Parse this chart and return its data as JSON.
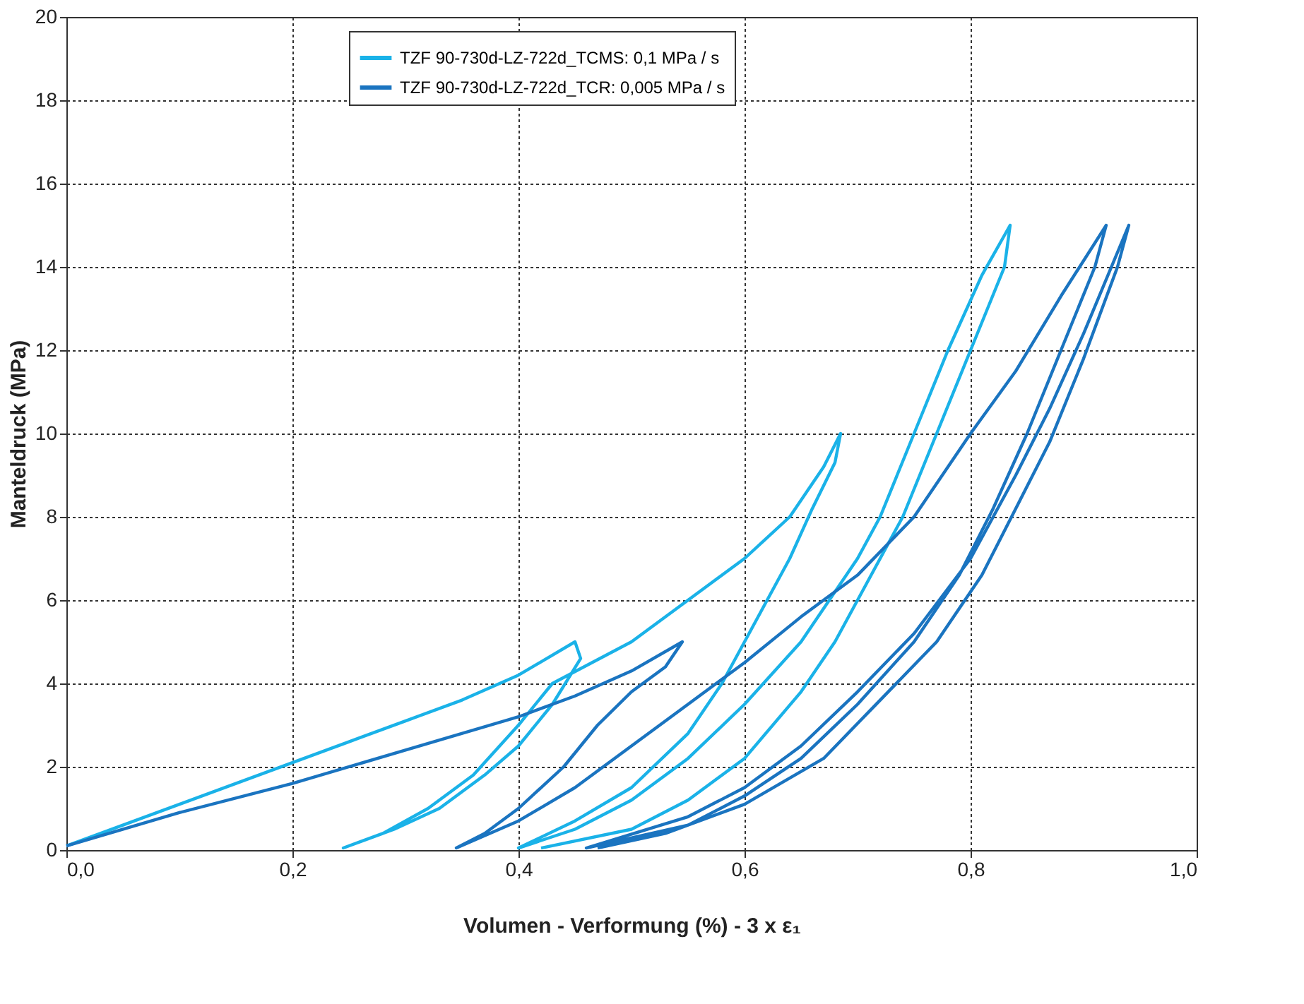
{
  "chart_data": {
    "type": "line",
    "xlabel": "Volumen - Verformung (%)  - 3 x ε₁",
    "ylabel": "Manteldruck (MPa)",
    "xlim": [
      0,
      1.0
    ],
    "ylim": [
      0,
      20
    ],
    "xticks": [
      {
        "value": 0,
        "label": "0,0"
      },
      {
        "value": 0.2,
        "label": "0,2"
      },
      {
        "value": 0.4,
        "label": "0,4"
      },
      {
        "value": 0.6,
        "label": "0,6"
      },
      {
        "value": 0.8,
        "label": "0,8"
      },
      {
        "value": 1.0,
        "label": "1,0"
      }
    ],
    "yticks": [
      0,
      2,
      4,
      6,
      8,
      10,
      12,
      14,
      16,
      18,
      20
    ],
    "grid": true,
    "legend": "top",
    "marker": "none",
    "line_style": "solid",
    "series": [
      {
        "name": "TZF 90-730d-LZ-722d_TCMS:  0,1 MPa / s",
        "color": "#1ab2e8",
        "x": [
          0,
          0.05,
          0.1,
          0.15,
          0.2,
          0.25,
          0.3,
          0.35,
          0.4,
          0.45,
          0.455,
          0.43,
          0.4,
          0.37,
          0.33,
          0.29,
          0.245,
          0.28,
          0.32,
          0.36,
          0.4,
          0.43,
          0.5,
          0.55,
          0.6,
          0.64,
          0.67,
          0.685,
          0.68,
          0.66,
          0.64,
          0.61,
          0.58,
          0.55,
          0.5,
          0.45,
          0.4,
          0.45,
          0.5,
          0.55,
          0.6,
          0.65,
          0.7,
          0.72,
          0.75,
          0.78,
          0.81,
          0.835,
          0.83,
          0.8,
          0.77,
          0.74,
          0.71,
          0.68,
          0.65,
          0.6,
          0.55,
          0.5,
          0.42
        ],
        "values": [
          0.1,
          0.6,
          1.1,
          1.6,
          2.1,
          2.6,
          3.1,
          3.6,
          4.2,
          5.0,
          4.6,
          3.5,
          2.5,
          1.8,
          1.0,
          0.5,
          0.05,
          0.4,
          1.0,
          1.8,
          3.0,
          4.0,
          5.0,
          6.0,
          7.0,
          8.0,
          9.2,
          10.0,
          9.3,
          8.2,
          7.0,
          5.5,
          4.0,
          2.8,
          1.5,
          0.7,
          0.05,
          0.5,
          1.2,
          2.2,
          3.5,
          5.0,
          7.0,
          8.0,
          10.0,
          12.0,
          13.8,
          15.0,
          14.0,
          12.0,
          10.0,
          8.0,
          6.5,
          5.0,
          3.8,
          2.2,
          1.2,
          0.5,
          0.05
        ]
      },
      {
        "name": "TZF 90-730d-LZ-722d_TCR: 0,005 MPa / s",
        "color": "#1a74c0",
        "x": [
          0,
          0.1,
          0.2,
          0.3,
          0.4,
          0.45,
          0.5,
          0.545,
          0.53,
          0.5,
          0.47,
          0.44,
          0.4,
          0.37,
          0.345,
          0.4,
          0.45,
          0.5,
          0.55,
          0.6,
          0.65,
          0.7,
          0.75,
          0.8,
          0.84,
          0.88,
          0.92,
          0.91,
          0.88,
          0.85,
          0.82,
          0.79,
          0.75,
          0.7,
          0.65,
          0.6,
          0.55,
          0.46,
          0.55,
          0.6,
          0.65,
          0.7,
          0.75,
          0.8,
          0.84,
          0.87,
          0.9,
          0.94,
          0.93,
          0.9,
          0.87,
          0.84,
          0.81,
          0.77,
          0.72,
          0.67,
          0.6,
          0.53,
          0.47
        ],
        "values": [
          0.1,
          0.9,
          1.6,
          2.4,
          3.2,
          3.7,
          4.3,
          5.0,
          4.4,
          3.8,
          3.0,
          2.0,
          1.0,
          0.4,
          0.05,
          0.7,
          1.5,
          2.5,
          3.5,
          4.5,
          5.6,
          6.6,
          8.0,
          10.0,
          11.5,
          13.3,
          15.0,
          14.0,
          12.0,
          10.0,
          8.2,
          6.6,
          5.0,
          3.5,
          2.2,
          1.3,
          0.6,
          0.05,
          0.8,
          1.5,
          2.5,
          3.8,
          5.2,
          7.0,
          9.0,
          10.6,
          12.4,
          15.0,
          14.0,
          11.8,
          9.8,
          8.2,
          6.6,
          5.0,
          3.6,
          2.2,
          1.1,
          0.4,
          0.05
        ]
      }
    ]
  }
}
